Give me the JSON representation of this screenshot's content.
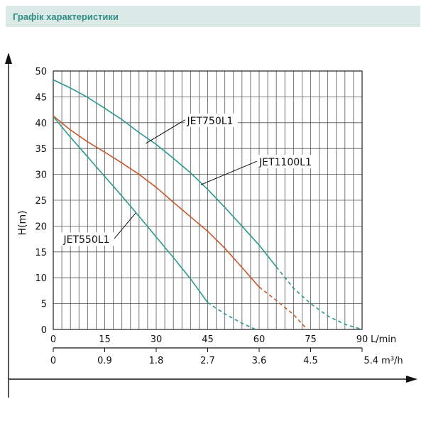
{
  "header": {
    "title": "Графік характеристики"
  },
  "colors": {
    "header_bg": "#dbe9e6",
    "header_text": "#2f8f86",
    "teal": "#2a9a8f",
    "orange": "#c8572b",
    "grid": "#555555"
  },
  "chart_data": {
    "type": "line",
    "ylabel": "H(m)",
    "x_unit_label": "L/min",
    "x2_unit_label": "5.4 m³/h",
    "xlim": [
      0,
      90
    ],
    "ylim": [
      0,
      50
    ],
    "x_ticks": [
      0,
      15,
      30,
      45,
      60,
      75,
      "90"
    ],
    "y_ticks": [
      0,
      5,
      10,
      15,
      20,
      25,
      30,
      35,
      40,
      45,
      50
    ],
    "x2_ticks": [
      "0",
      "0.9",
      "1.8",
      "2.7",
      "3.6",
      "4.5"
    ],
    "grid": true,
    "series": [
      {
        "name": "JET550L1",
        "color": "#2a9a8f",
        "points": [
          [
            0,
            41.2
          ],
          [
            5,
            37.2
          ],
          [
            10,
            33.4
          ],
          [
            15,
            29.6
          ],
          [
            20,
            25.8
          ],
          [
            25,
            21.9
          ],
          [
            30,
            17.9
          ],
          [
            35,
            13.9
          ],
          [
            40,
            9.8
          ],
          [
            45,
            5.2
          ]
        ],
        "dashed_points": [
          [
            45,
            5.2
          ],
          [
            50,
            3.0
          ],
          [
            55,
            1.2
          ],
          [
            59,
            0
          ]
        ]
      },
      {
        "name": "JET1100L1",
        "color": "#c8572b",
        "points": [
          [
            0,
            41.3
          ],
          [
            5,
            38.6
          ],
          [
            10,
            36.3
          ],
          [
            15,
            34.3
          ],
          [
            20,
            32.2
          ],
          [
            25,
            30.0
          ],
          [
            30,
            27.5
          ],
          [
            35,
            24.6
          ],
          [
            40,
            21.8
          ],
          [
            45,
            19.0
          ],
          [
            50,
            15.7
          ],
          [
            55,
            12.0
          ],
          [
            60,
            8.2
          ]
        ],
        "dashed_points": [
          [
            60,
            8.2
          ],
          [
            65,
            5.6
          ],
          [
            70,
            2.9
          ],
          [
            74,
            0
          ]
        ]
      },
      {
        "name": "JET750L1",
        "color": "#2a9a8f",
        "points": [
          [
            0,
            48.3
          ],
          [
            5,
            46.7
          ],
          [
            10,
            44.9
          ],
          [
            15,
            42.8
          ],
          [
            20,
            40.6
          ],
          [
            25,
            38.1
          ],
          [
            30,
            35.8
          ],
          [
            35,
            33.1
          ],
          [
            40,
            30.3
          ],
          [
            45,
            27.1
          ],
          [
            50,
            23.6
          ],
          [
            55,
            20.0
          ],
          [
            60,
            16.3
          ],
          [
            65,
            12.1
          ]
        ],
        "dashed_points": [
          [
            65,
            12.1
          ],
          [
            70,
            8.0
          ],
          [
            75,
            5.0
          ],
          [
            80,
            2.6
          ],
          [
            85,
            1.0
          ],
          [
            90,
            0
          ]
        ]
      }
    ],
    "annotations": [
      {
        "text": "JET750L1",
        "x": 39,
        "y": 40,
        "target": [
          27,
          36
        ]
      },
      {
        "text": "JET1100L1",
        "x": 60,
        "y": 32,
        "target": [
          43,
          28
        ]
      },
      {
        "text": "JET550L1",
        "x": 3,
        "y": 17,
        "target": [
          24,
          22.5
        ]
      }
    ]
  }
}
